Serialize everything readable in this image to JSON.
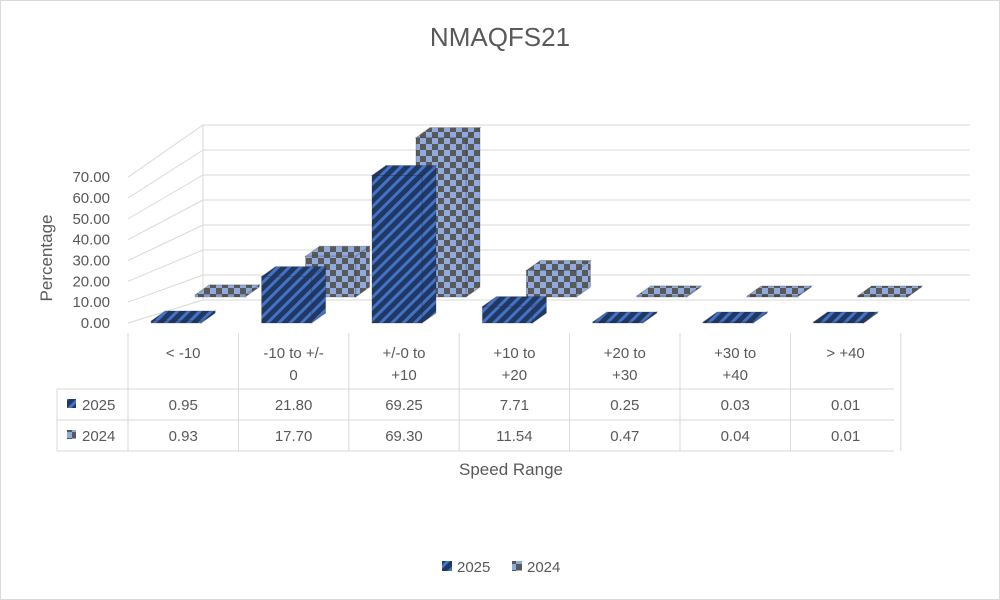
{
  "chart_data": {
    "type": "bar",
    "title": "NMAQFS21",
    "xlabel": "Speed Range",
    "ylabel": "Percentage",
    "ylim": [
      0,
      70
    ],
    "yticks": [
      "0.00",
      "10.00",
      "20.00",
      "30.00",
      "40.00",
      "50.00",
      "60.00",
      "70.00"
    ],
    "categories": [
      [
        "< -10"
      ],
      [
        "-10 to +/-",
        "0"
      ],
      [
        "+/-0 to",
        "+10"
      ],
      [
        "+10 to",
        "+20"
      ],
      [
        "+20 to",
        "+30"
      ],
      [
        "+30 to",
        "+40"
      ],
      [
        "> +40"
      ]
    ],
    "series": [
      {
        "name": "2025",
        "values": [
          0.95,
          21.8,
          69.25,
          7.71,
          0.25,
          0.03,
          0.01
        ],
        "labels": [
          "0.95",
          "21.80",
          "69.25",
          "7.71",
          "0.25",
          "0.03",
          "0.01"
        ],
        "color": "#203864",
        "stripe": "#4472c4"
      },
      {
        "name": "2024",
        "values": [
          0.93,
          17.7,
          69.3,
          11.54,
          0.47,
          0.04,
          0.01
        ],
        "labels": [
          "0.93",
          "17.70",
          "69.30",
          "11.54",
          "0.47",
          "0.04",
          "0.01"
        ],
        "color": "#8faadc",
        "stripe": "#595959"
      }
    ],
    "grid": true,
    "legend": "bottom",
    "data_table": true
  }
}
